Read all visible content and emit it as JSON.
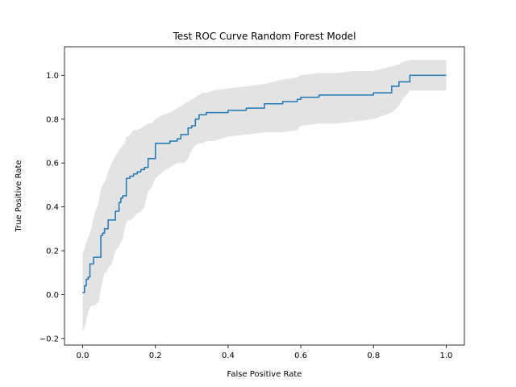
{
  "chart_data": {
    "type": "line",
    "title": "Test ROC Curve Random Forest Model",
    "xlabel": "False Positive Rate",
    "ylabel": "True Positive Rate",
    "xlim": [
      -0.05,
      1.05
    ],
    "ylim": [
      -0.23,
      1.13
    ],
    "xticks": [
      0.0,
      0.2,
      0.4,
      0.6,
      0.8,
      1.0
    ],
    "xtick_labels": [
      "0.0",
      "0.2",
      "0.4",
      "0.6",
      "0.8",
      "1.0"
    ],
    "yticks": [
      -0.2,
      0.0,
      0.2,
      0.4,
      0.6,
      0.8,
      1.0
    ],
    "ytick_labels": [
      "−0.2",
      "0.0",
      "0.2",
      "0.4",
      "0.6",
      "0.8",
      "1.0"
    ],
    "grid": false,
    "legend": null,
    "colors": {
      "line": "#1f77b4",
      "band": "#d9d9d9"
    },
    "series": [
      {
        "x": [
          0.0,
          0.005,
          0.01,
          0.015,
          0.02,
          0.025,
          0.03,
          0.035,
          0.04,
          0.045,
          0.05,
          0.055,
          0.06,
          0.065,
          0.07,
          0.08,
          0.09,
          0.1,
          0.105,
          0.11,
          0.115,
          0.12,
          0.125,
          0.13,
          0.14,
          0.15,
          0.16,
          0.17,
          0.18,
          0.19,
          0.2,
          0.22,
          0.24,
          0.25,
          0.26,
          0.27,
          0.28,
          0.29,
          0.3,
          0.31,
          0.32,
          0.33,
          0.34,
          0.36,
          0.4,
          0.45,
          0.5,
          0.55,
          0.59,
          0.6,
          0.65,
          0.7,
          0.75,
          0.8,
          0.85,
          0.87,
          0.88,
          0.9,
          0.95,
          1.0
        ],
        "y": [
          0.01,
          0.04,
          0.07,
          0.08,
          0.14,
          0.14,
          0.17,
          0.17,
          0.17,
          0.17,
          0.27,
          0.28,
          0.3,
          0.3,
          0.34,
          0.34,
          0.38,
          0.42,
          0.44,
          0.45,
          0.45,
          0.53,
          0.53,
          0.54,
          0.55,
          0.56,
          0.57,
          0.58,
          0.62,
          0.62,
          0.69,
          0.69,
          0.7,
          0.7,
          0.71,
          0.73,
          0.73,
          0.76,
          0.77,
          0.8,
          0.82,
          0.82,
          0.83,
          0.83,
          0.84,
          0.85,
          0.87,
          0.88,
          0.89,
          0.9,
          0.91,
          0.91,
          0.91,
          0.92,
          0.95,
          0.97,
          0.97,
          1.0,
          1.0,
          1.0
        ],
        "lower": [
          -0.17,
          -0.15,
          -0.12,
          -0.08,
          -0.06,
          -0.05,
          -0.05,
          -0.05,
          -0.04,
          -0.03,
          0.03,
          0.06,
          0.1,
          0.1,
          0.12,
          0.14,
          0.2,
          0.22,
          0.24,
          0.25,
          0.3,
          0.33,
          0.34,
          0.34,
          0.35,
          0.37,
          0.38,
          0.4,
          0.47,
          0.49,
          0.53,
          0.56,
          0.58,
          0.59,
          0.6,
          0.6,
          0.6,
          0.62,
          0.66,
          0.68,
          0.69,
          0.69,
          0.7,
          0.7,
          0.72,
          0.73,
          0.74,
          0.74,
          0.75,
          0.77,
          0.78,
          0.78,
          0.79,
          0.8,
          0.83,
          0.86,
          0.89,
          0.93,
          0.93,
          0.93
        ],
        "upper": [
          0.19,
          0.21,
          0.24,
          0.26,
          0.28,
          0.31,
          0.35,
          0.38,
          0.4,
          0.43,
          0.48,
          0.5,
          0.51,
          0.53,
          0.56,
          0.6,
          0.63,
          0.66,
          0.67,
          0.68,
          0.69,
          0.72,
          0.72,
          0.73,
          0.75,
          0.75,
          0.76,
          0.77,
          0.78,
          0.78,
          0.8,
          0.82,
          0.83,
          0.84,
          0.85,
          0.86,
          0.87,
          0.88,
          0.89,
          0.9,
          0.91,
          0.92,
          0.92,
          0.93,
          0.94,
          0.95,
          0.96,
          0.98,
          0.99,
          1.0,
          1.01,
          1.01,
          1.02,
          1.02,
          1.04,
          1.05,
          1.06,
          1.07,
          1.07,
          1.07
        ]
      }
    ]
  }
}
